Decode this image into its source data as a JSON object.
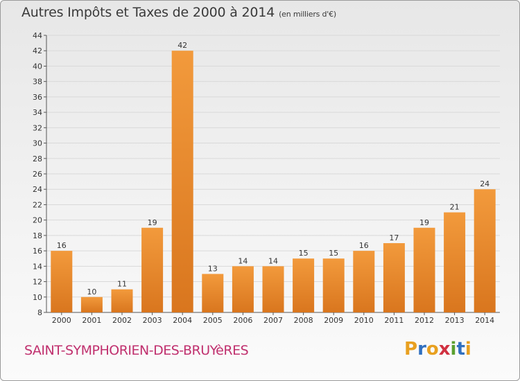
{
  "title": "Autres Impôts et Taxes de 2000 à 2014",
  "subtitle": "(en milliers d'€)",
  "commune": "SAINT-SYMPHORIEN-DES-BRUYèRES",
  "logo": {
    "letters": [
      "P",
      "r",
      "o",
      "x",
      "i",
      "t",
      "i"
    ],
    "colors": [
      "#e8a020",
      "#3070c0",
      "#e8a020",
      "#d03040",
      "#5aa030",
      "#3070c0",
      "#e8a020"
    ]
  },
  "colors": {
    "bar": "#f29a3c",
    "bar_dark": "#d9761e",
    "grid": "#d9d9d9",
    "text": "#333333"
  },
  "chart_data": {
    "type": "bar",
    "categories": [
      "2000",
      "2001",
      "2002",
      "2003",
      "2004",
      "2005",
      "2006",
      "2007",
      "2008",
      "2009",
      "2010",
      "2011",
      "2012",
      "2013",
      "2014"
    ],
    "values": [
      16,
      10,
      11,
      19,
      42,
      13,
      14,
      14,
      15,
      15,
      16,
      17,
      19,
      21,
      24
    ],
    "ylim": [
      8,
      44
    ],
    "yticks": [
      8,
      10,
      12,
      14,
      16,
      18,
      20,
      22,
      24,
      26,
      28,
      30,
      32,
      34,
      36,
      38,
      40,
      42,
      44
    ],
    "grid": true
  }
}
